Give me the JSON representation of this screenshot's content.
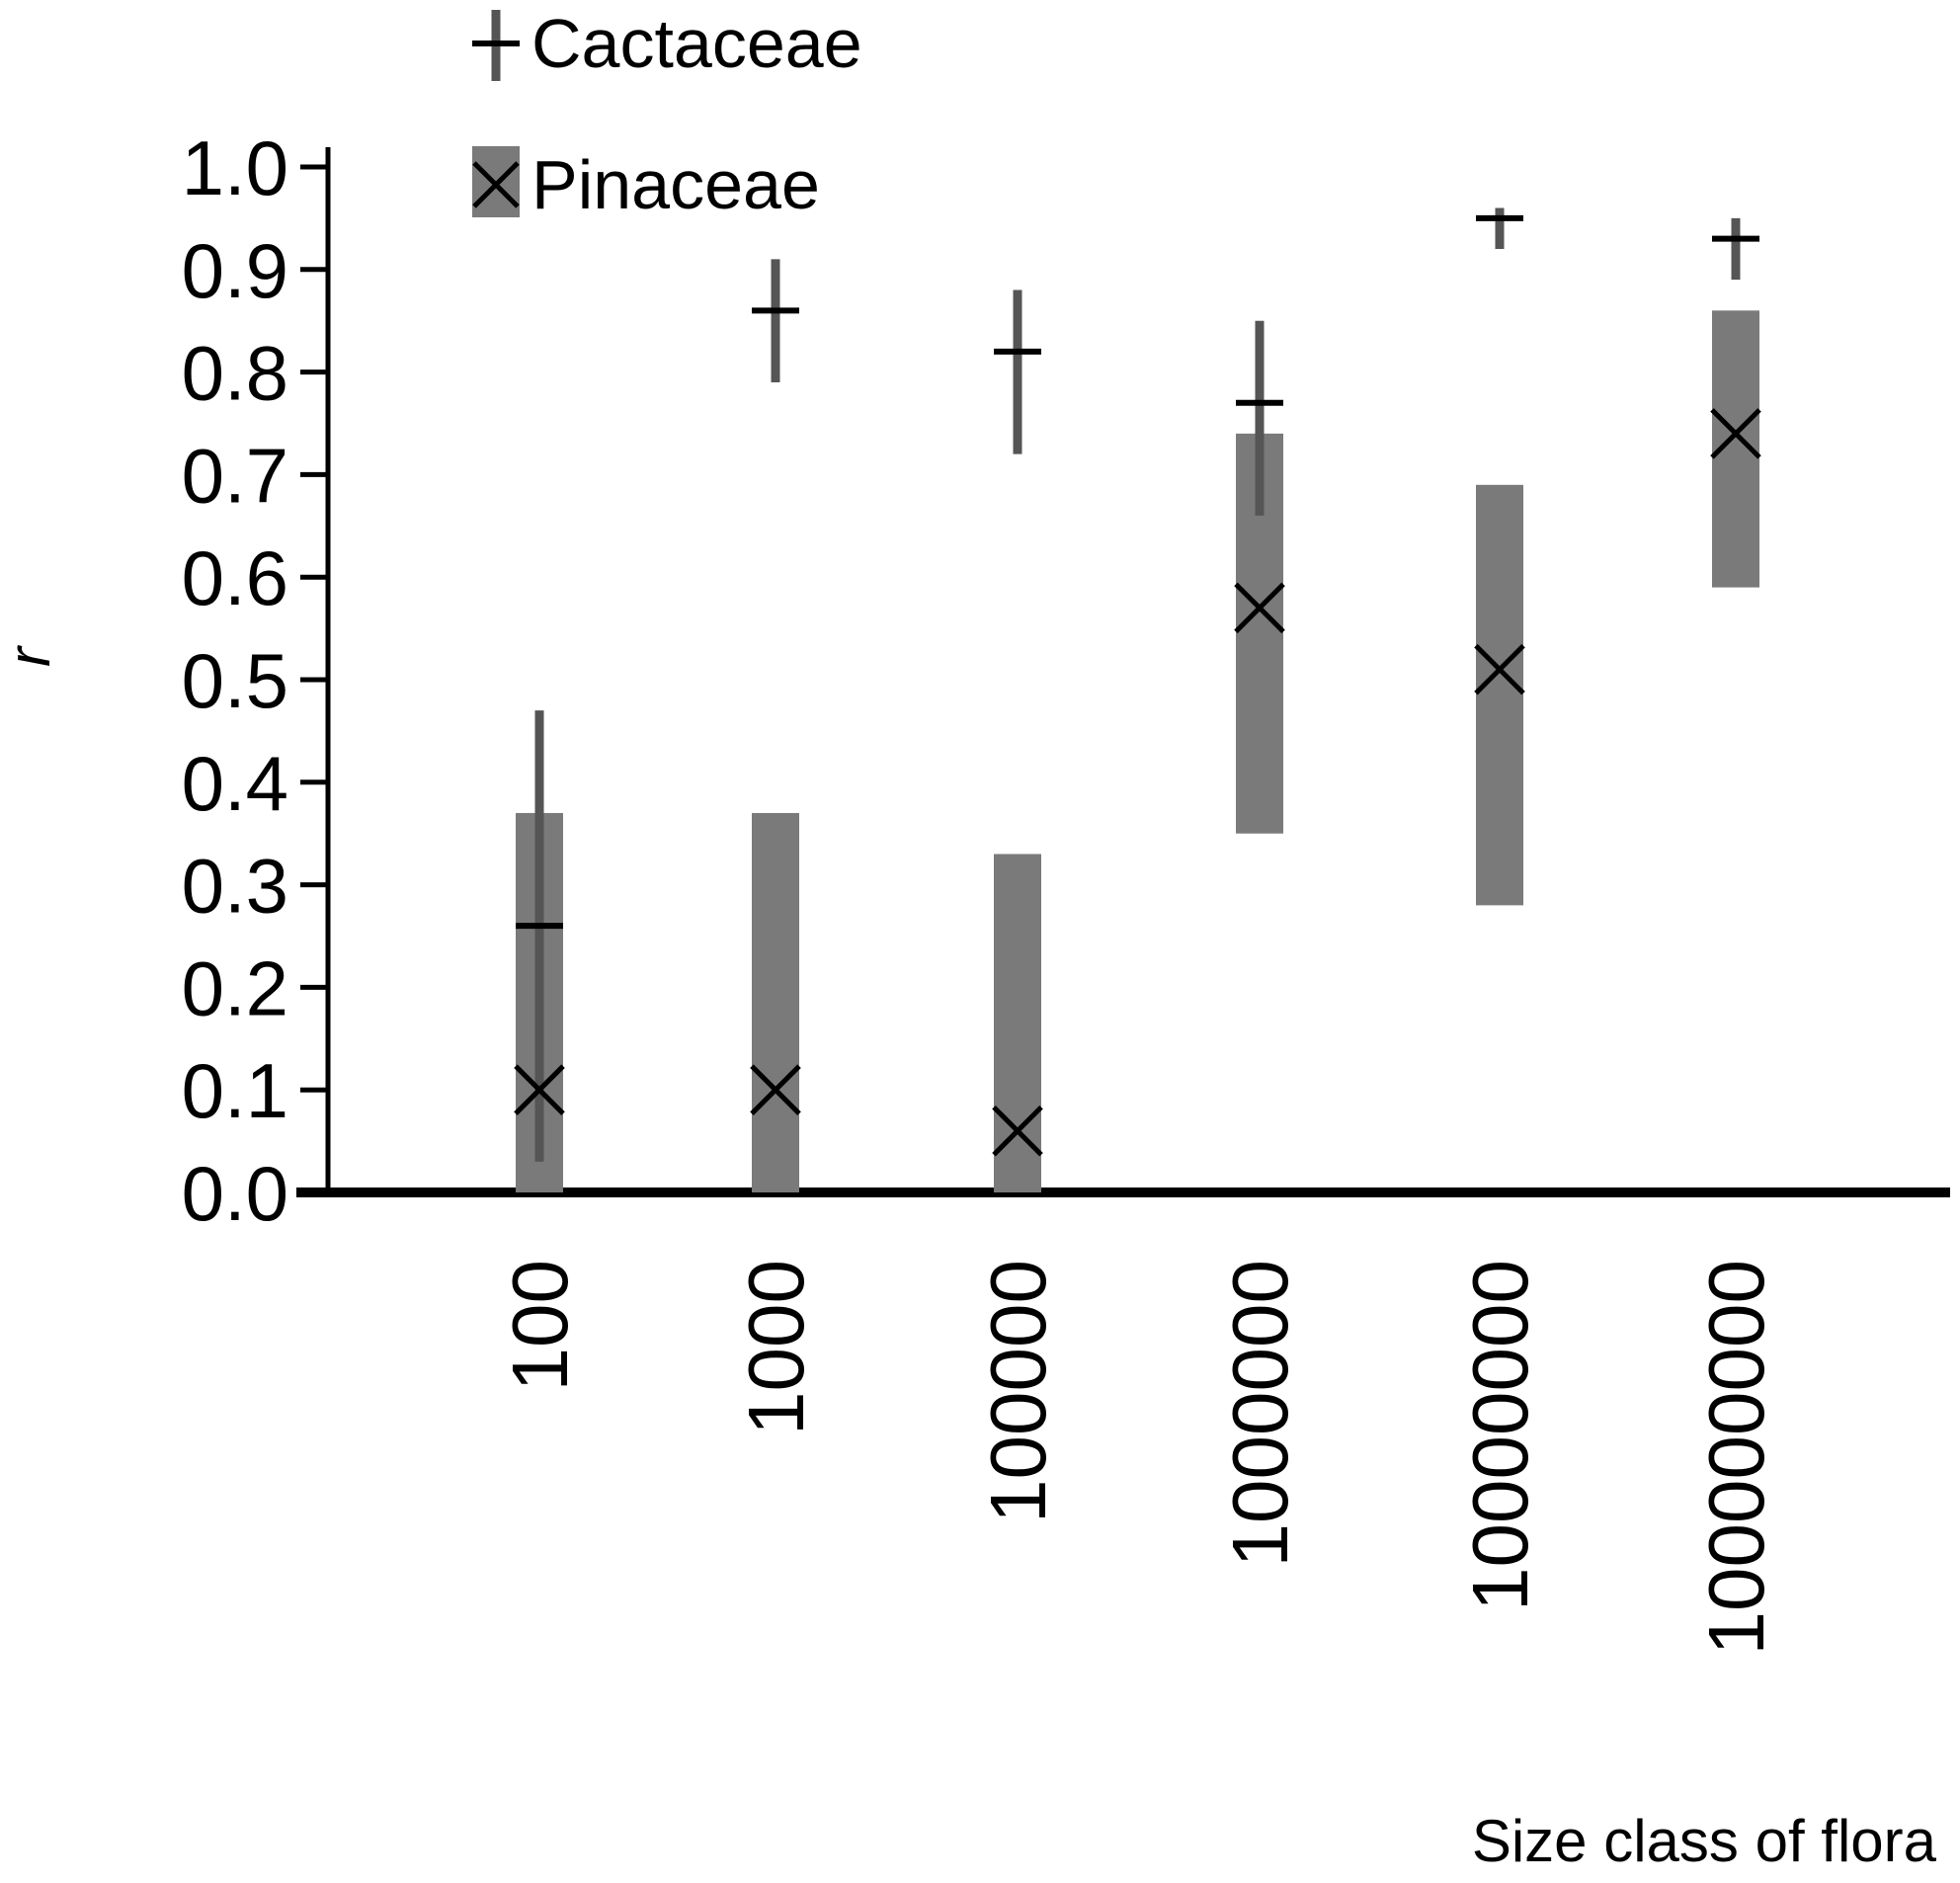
{
  "chart_data": {
    "type": "scatter",
    "title": "",
    "xlabel": "Size class of flora",
    "ylabel": "r",
    "categories": [
      "100",
      "1000",
      "100000",
      "1000000",
      "10000000",
      "100000000"
    ],
    "ylim": [
      0,
      1.0
    ],
    "yticks": [
      "0.0",
      "0.1",
      "0.2",
      "0.3",
      "0.4",
      "0.5",
      "0.6",
      "0.7",
      "0.8",
      "0.9",
      "1.0"
    ],
    "grid": false,
    "legend_position": "top-left",
    "series": [
      {
        "name": "Cactaceae",
        "marker": "plus",
        "color": "#000000",
        "error_color": "#555555",
        "values": [
          0.26,
          0.86,
          0.82,
          0.77,
          0.95,
          0.93
        ],
        "lower": [
          0.03,
          0.79,
          0.72,
          0.66,
          0.92,
          0.89
        ],
        "upper": [
          0.47,
          0.91,
          0.88,
          0.85,
          0.96,
          0.95
        ]
      },
      {
        "name": "Pinaceae",
        "marker": "x",
        "color": "#000000",
        "error_color": "#7a7a7a",
        "values": [
          0.1,
          0.1,
          0.06,
          0.57,
          0.51,
          0.74
        ],
        "lower": [
          0.0,
          0.0,
          0.0,
          0.35,
          0.28,
          0.59
        ],
        "upper": [
          0.37,
          0.37,
          0.33,
          0.74,
          0.69,
          0.86
        ]
      }
    ]
  }
}
